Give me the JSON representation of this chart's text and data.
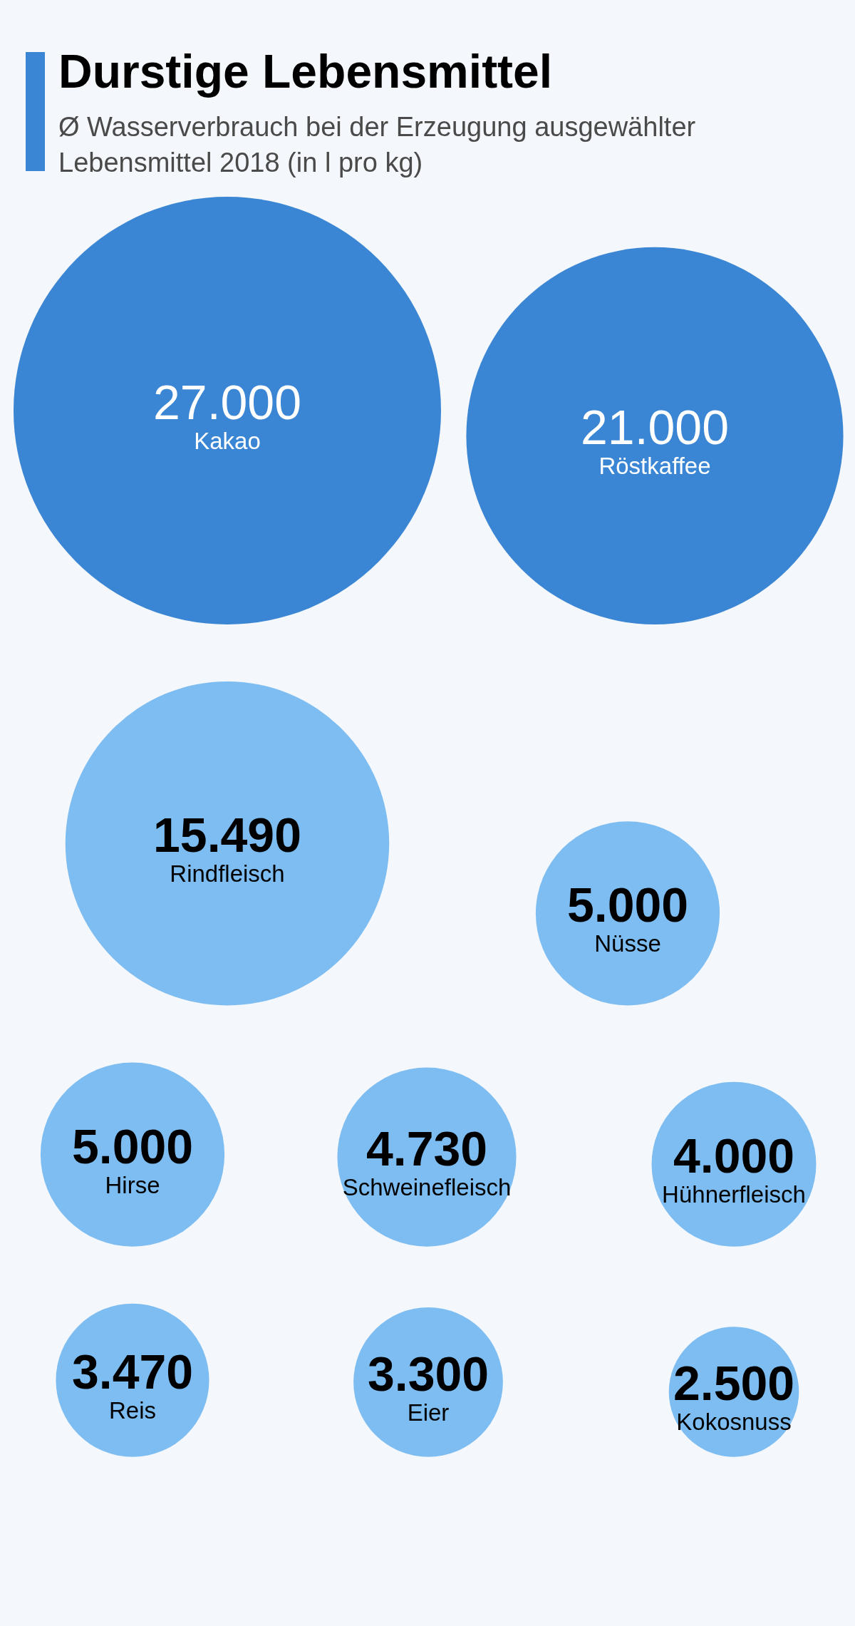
{
  "chart_data": {
    "type": "other",
    "title": "Durstige Lebensmittel",
    "subtitle": "Ø Wasserverbrauch bei der Erzeugung ausgewählter Lebensmittel 2018 (in l pro kg)",
    "categories": [
      "Kakao",
      "Röstkaffee",
      "Rindfleisch",
      "Nüsse",
      "Hirse",
      "Schweinefleisch",
      "Hühnerfleisch",
      "Reis",
      "Eier",
      "Kokosnuss"
    ],
    "values": [
      27000,
      21000,
      15490,
      5000,
      5000,
      4730,
      4000,
      3470,
      3300,
      2500
    ],
    "value_labels": [
      "27.000",
      "21.000",
      "15.490",
      "5.000",
      "5.000",
      "4.730",
      "4.000",
      "3.470",
      "3.300",
      "2.500"
    ],
    "colors": [
      "#3a86d4",
      "#3a86d4",
      "#7dbdf2",
      "#7dbdf2",
      "#7dbdf2",
      "#7dbdf2",
      "#7dbdf2",
      "#7dbdf2",
      "#7dbdf2",
      "#7dbdf2"
    ]
  }
}
